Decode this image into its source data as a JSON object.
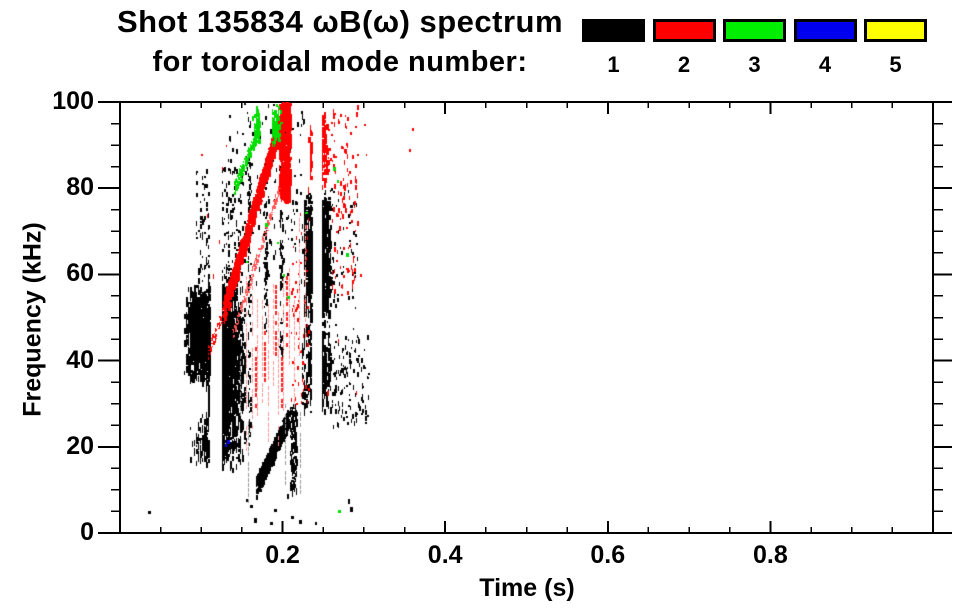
{
  "title": {
    "line1": "Shot 135834 ωB(ω) spectrum",
    "line2": "for toroidal mode number:"
  },
  "legend": {
    "items": [
      {
        "label": "1",
        "color": "#000000"
      },
      {
        "label": "2",
        "color": "#ff0000"
      },
      {
        "label": "3",
        "color": "#00ee00"
      },
      {
        "label": "4",
        "color": "#0000ee"
      },
      {
        "label": "5",
        "color": "#ffff00"
      }
    ]
  },
  "axes": {
    "x": {
      "label": "Time (s)",
      "range": [
        0,
        1.0
      ],
      "major_ticks": [
        0.2,
        0.4,
        0.6,
        0.8
      ],
      "tick_labels": [
        "0.2",
        "0.4",
        "0.6",
        "0.8"
      ],
      "minor_step": 0.05
    },
    "y": {
      "label": "Frequency (kHz)",
      "range": [
        0,
        100
      ],
      "major_ticks": [
        0,
        20,
        40,
        60,
        80,
        100
      ],
      "tick_labels": [
        "0",
        "20",
        "40",
        "60",
        "80",
        "100"
      ],
      "minor_step": 5
    }
  },
  "chart_data": {
    "type": "scatter",
    "title": "Shot 135834 ωB(ω) spectrum for toroidal mode number",
    "xlabel": "Time (s)",
    "ylabel": "Frequency (kHz)",
    "xlim": [
      0,
      1.0
    ],
    "ylim": [
      0,
      100
    ],
    "grid": false,
    "legend_position": "top-right",
    "mode_colors": {
      "n1": "black",
      "n2": "red",
      "n3": "green",
      "n4": "blue",
      "n5": "yellow"
    },
    "description": "Magnetic spectrogram scatter; activity only between t=0.03-0.36 s. n=1 (black): broadband cluster t 0.08-0.16 s at 15-60 kHz, rising chirp 11-27 kHz at t 0.17-0.21 s, second cluster t 0.22-0.26 s at 27-80 kHz. n=2 (red): frequency-chirping band from (0.13 s, 52 kHz) up to (0.20 s, 100 kHz), vertical streaks 20-60 kHz, cluster t 0.23-0.26 s at 79-100 kHz. n=3 (green): cluster t 0.16-0.20 s at 90-100 kHz plus band edge near 80-93 kHz. n=4 (blue): two specks near (0.13 s, 21 kHz). n=5 (yellow): none visible.",
    "scatter_groups": [
      {
        "name": "n1-main-core-left",
        "color": "#000000",
        "shape": "blob",
        "t": [
          0.078,
          0.122
        ],
        "f": [
          35,
          58
        ],
        "n": 1600,
        "w": [
          1,
          3
        ],
        "h": [
          2,
          7
        ],
        "streak": true
      },
      {
        "name": "n1-main-core-right",
        "color": "#000000",
        "shape": "blob",
        "t": [
          0.102,
          0.155
        ],
        "f": [
          22,
          60
        ],
        "n": 1700,
        "w": [
          1,
          2
        ],
        "h": [
          3,
          10
        ],
        "streak": true
      },
      {
        "name": "n1-main-low-fringe",
        "color": "#000000",
        "shape": "blob",
        "t": [
          0.085,
          0.155
        ],
        "f": [
          15,
          28
        ],
        "n": 420,
        "w": [
          1,
          2
        ],
        "h": [
          2,
          8
        ],
        "streak": true
      },
      {
        "name": "n1-main-upper-sparse",
        "color": "#000000",
        "shape": "specks",
        "t": [
          0.092,
          0.15
        ],
        "f": [
          58,
          85
        ],
        "n": 230,
        "w": [
          1,
          2
        ],
        "h": [
          2,
          5
        ],
        "streak": true
      },
      {
        "name": "n1-hook-chirp",
        "color": "#000000",
        "shape": "band",
        "from": [
          0.126,
          48
        ],
        "to": [
          0.147,
          64
        ],
        "width": 4,
        "n": 260,
        "w": [
          1,
          2
        ],
        "h": [
          2,
          5
        ]
      },
      {
        "name": "n1-low-chirp",
        "color": "#000000",
        "shape": "band",
        "from": [
          0.167,
          11
        ],
        "to": [
          0.207,
          27
        ],
        "width": 4.5,
        "n": 520,
        "w": [
          1,
          3
        ],
        "h": [
          2,
          5
        ]
      },
      {
        "name": "n1-mid-column-1",
        "color": "#000000",
        "shape": "specks",
        "t": [
          0.157,
          0.16
        ],
        "f": [
          20,
          88
        ],
        "n": 90,
        "w": [
          1,
          2
        ],
        "h": [
          2,
          6
        ]
      },
      {
        "name": "n1-mid-column-2",
        "color": "#000000",
        "shape": "specks",
        "t": [
          0.177,
          0.18
        ],
        "f": [
          45,
          86
        ],
        "n": 60,
        "w": [
          1,
          2
        ],
        "h": [
          2,
          6
        ]
      },
      {
        "name": "n1-mid-column-3",
        "color": "#000000",
        "shape": "specks",
        "t": [
          0.196,
          0.2
        ],
        "f": [
          42,
          75
        ],
        "n": 60,
        "w": [
          1,
          2
        ],
        "h": [
          2,
          6
        ]
      },
      {
        "name": "n1-band-region-specks",
        "color": "#000000",
        "shape": "specks",
        "t": [
          0.13,
          0.225
        ],
        "f": [
          58,
          100
        ],
        "n": 150,
        "w": [
          1,
          2
        ],
        "h": [
          2,
          5
        ]
      },
      {
        "name": "n1-cluster2-core",
        "color": "#000000",
        "shape": "blob",
        "t": [
          0.224,
          0.26
        ],
        "f": [
          48,
          80
        ],
        "n": 1500,
        "w": [
          1,
          3
        ],
        "h": [
          2,
          8
        ],
        "streak": true
      },
      {
        "name": "n1-cluster2-low",
        "color": "#000000",
        "shape": "blob",
        "t": [
          0.221,
          0.263
        ],
        "f": [
          27,
          50
        ],
        "n": 520,
        "w": [
          1,
          2
        ],
        "h": [
          2,
          9
        ],
        "streak": true
      },
      {
        "name": "n1-cluster2-left-column",
        "color": "#000000",
        "shape": "specks",
        "t": [
          0.209,
          0.217
        ],
        "f": [
          10,
          30
        ],
        "n": 110,
        "w": [
          1,
          2
        ],
        "h": [
          2,
          7
        ]
      },
      {
        "name": "n1-cluster2-trail",
        "color": "#000000",
        "shape": "specks",
        "t": [
          0.262,
          0.305
        ],
        "f": [
          25,
          46
        ],
        "n": 120,
        "w": [
          1,
          2
        ],
        "h": [
          2,
          5
        ]
      },
      {
        "name": "n1-cluster2-above",
        "color": "#000000",
        "shape": "specks",
        "t": [
          0.252,
          0.292
        ],
        "f": [
          46,
          80
        ],
        "n": 70,
        "w": [
          1,
          2
        ],
        "h": [
          2,
          4
        ]
      },
      {
        "name": "n1-bottom-specks",
        "color": "#000000",
        "shape": "points",
        "points": [
          [
            0.034,
            5
          ],
          [
            0.155,
            8
          ],
          [
            0.16,
            6.5
          ],
          [
            0.165,
            3.5
          ],
          [
            0.185,
            2.5
          ],
          [
            0.21,
            4
          ],
          [
            0.22,
            3
          ],
          [
            0.24,
            2.5
          ],
          [
            0.28,
            8
          ],
          [
            0.283,
            6
          ],
          [
            0.19,
            5.5
          ],
          [
            0.205,
            9
          ]
        ],
        "w": [
          2,
          3
        ],
        "h": [
          3,
          5
        ]
      },
      {
        "name": "n2-main-band",
        "color": "#ff0000",
        "shape": "band",
        "from": [
          0.127,
          52
        ],
        "to": [
          0.2035,
          100
        ],
        "width": 5.5,
        "n": 1050,
        "w": [
          1,
          3
        ],
        "h": [
          2,
          6
        ]
      },
      {
        "name": "n2-band-parallel-low",
        "color": "#ff5555",
        "shape": "band",
        "from": [
          0.138,
          46
        ],
        "to": [
          0.205,
          86
        ],
        "width": 2.5,
        "n": 210,
        "w": [
          1,
          2
        ],
        "h": [
          1,
          3
        ]
      },
      {
        "name": "n2-band-lead",
        "color": "#ff0000",
        "shape": "band",
        "from": [
          0.108,
          42
        ],
        "to": [
          0.13,
          53
        ],
        "width": 3,
        "n": 60,
        "w": [
          1,
          2
        ],
        "h": [
          1,
          3
        ]
      },
      {
        "name": "n2-top-column",
        "color": "#ff0000",
        "shape": "specks",
        "t": [
          0.1955,
          0.2085
        ],
        "f": [
          78,
          100
        ],
        "n": 430,
        "w": [
          1,
          3
        ],
        "h": [
          3,
          8
        ]
      },
      {
        "name": "n2-right-cluster",
        "color": "#ff0000",
        "shape": "blob",
        "t": [
          0.231,
          0.257
        ],
        "f": [
          79,
          100
        ],
        "n": 380,
        "w": [
          1,
          3
        ],
        "h": [
          2,
          7
        ],
        "streak": true
      },
      {
        "name": "n2-right-sparse",
        "color": "#ff0000",
        "shape": "specks",
        "t": [
          0.258,
          0.292
        ],
        "f": [
          55,
          100
        ],
        "n": 110,
        "w": [
          1,
          2
        ],
        "h": [
          2,
          5
        ]
      },
      {
        "name": "n2-mid-sparse",
        "color": "#ff0000",
        "shape": "specks",
        "t": [
          0.21,
          0.232
        ],
        "f": [
          30,
          75
        ],
        "n": 60,
        "w": [
          1,
          2
        ],
        "h": [
          2,
          4
        ]
      },
      {
        "name": "n2-left-specks",
        "color": "#ff0000",
        "shape": "points",
        "points": [
          [
            0.1,
            88
          ],
          [
            0.107,
            74
          ],
          [
            0.125,
            85
          ],
          [
            0.115,
            60
          ],
          [
            0.122,
            68
          ],
          [
            0.359,
            94
          ],
          [
            0.355,
            89
          ],
          [
            0.3,
            95
          ],
          [
            0.302,
            88
          ],
          [
            0.295,
            60
          ],
          [
            0.27,
            62
          ],
          [
            0.268,
            45
          ],
          [
            0.255,
            33
          ],
          [
            0.29,
            33
          ],
          [
            0.13,
            90
          ]
        ],
        "w": [
          1,
          2
        ],
        "h": [
          2,
          5
        ]
      },
      {
        "name": "n2-vlines-faint",
        "color": "#ff9999",
        "shape": "vlines",
        "lines": [
          [
            0.1555,
            20,
            60
          ],
          [
            0.162,
            25,
            60
          ],
          [
            0.1685,
            28,
            55
          ],
          [
            0.175,
            30,
            55
          ],
          [
            0.1815,
            22,
            55
          ],
          [
            0.188,
            35,
            58
          ],
          [
            0.1945,
            20,
            52
          ],
          [
            0.201,
            28,
            60
          ],
          [
            0.2075,
            40,
            62
          ],
          [
            0.214,
            30,
            55
          ],
          [
            0.2205,
            42,
            75
          ],
          [
            0.227,
            45,
            72
          ]
        ],
        "w": [
          1,
          2
        ]
      },
      {
        "name": "n2-vlines-strong",
        "color": "#ff2222",
        "shape": "vlines",
        "lines": [
          [
            0.1665,
            30,
            44
          ],
          [
            0.1775,
            36,
            50
          ],
          [
            0.1905,
            42,
            58
          ],
          [
            0.1985,
            30,
            42
          ],
          [
            0.2045,
            44,
            60
          ]
        ],
        "w": [
          2,
          2
        ]
      },
      {
        "name": "n3-top-cluster",
        "color": "#00dd00",
        "shape": "blob",
        "t": [
          0.162,
          0.198
        ],
        "f": [
          90,
          100
        ],
        "n": 420,
        "w": [
          1,
          3
        ],
        "h": [
          2,
          6
        ],
        "streak": true
      },
      {
        "name": "n3-band-edge",
        "color": "#00dd00",
        "shape": "band",
        "from": [
          0.14,
          80
        ],
        "to": [
          0.168,
          93
        ],
        "width": 3,
        "n": 150,
        "w": [
          1,
          2
        ],
        "h": [
          2,
          4
        ]
      },
      {
        "name": "n3-specks",
        "color": "#00dd00",
        "shape": "points",
        "points": [
          [
            0.193,
            67.5
          ],
          [
            0.2,
            60
          ],
          [
            0.228,
            74.5
          ],
          [
            0.262,
            85
          ],
          [
            0.267,
            82
          ],
          [
            0.268,
            5.3
          ],
          [
            0.155,
            63
          ],
          [
            0.178,
            72
          ],
          [
            0.278,
            65
          ],
          [
            0.205,
            55
          ]
        ],
        "w": [
          2,
          3
        ],
        "h": [
          2,
          4
        ]
      },
      {
        "name": "n4-specks",
        "color": "#0000ee",
        "shape": "points",
        "points": [
          [
            0.129,
            20.6
          ],
          [
            0.132,
            21.5
          ]
        ],
        "w": [
          2,
          3
        ],
        "h": [
          3,
          4
        ]
      },
      {
        "name": "faint-columns",
        "color": "#999999",
        "shape": "vlines",
        "lines": [
          [
            0.1575,
            8,
            26
          ],
          [
            0.2025,
            12,
            30
          ],
          [
            0.147,
            28,
            44
          ],
          [
            0.222,
            10,
            28
          ]
        ],
        "w": [
          1,
          2
        ]
      }
    ]
  }
}
